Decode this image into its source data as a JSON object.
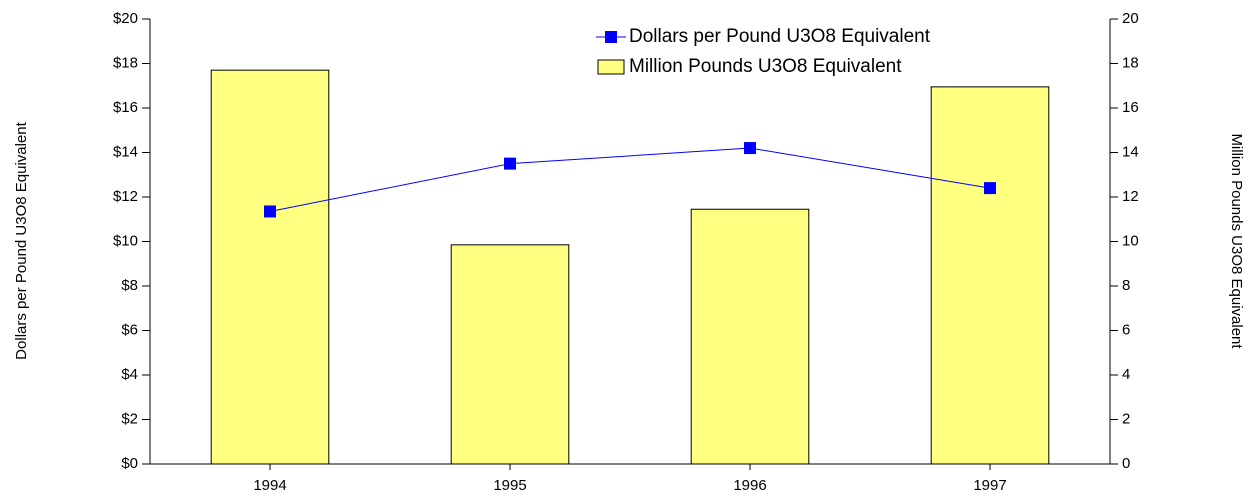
{
  "chart_data": {
    "type": "combo",
    "categories": [
      "1994",
      "1995",
      "1996",
      "1997"
    ],
    "ylabel": "Dollars per Pound U3O8 Equivalent",
    "y2label": "Million Pounds U3O8 Equivalent",
    "ylim": [
      0,
      20
    ],
    "yticks": [
      {
        "value": 0,
        "label": "$0"
      },
      {
        "value": 2,
        "label": "$2"
      },
      {
        "value": 4,
        "label": "$4"
      },
      {
        "value": 6,
        "label": "$6"
      },
      {
        "value": 8,
        "label": "$8"
      },
      {
        "value": 10,
        "label": "$10"
      },
      {
        "value": 12,
        "label": "$12"
      },
      {
        "value": 14,
        "label": "$14"
      },
      {
        "value": 16,
        "label": "$16"
      },
      {
        "value": 18,
        "label": "$18"
      },
      {
        "value": 20,
        "label": "$20"
      }
    ],
    "y2lim": [
      0,
      20
    ],
    "y2ticks": [
      0,
      2,
      4,
      6,
      8,
      10,
      12,
      14,
      16,
      18,
      20
    ],
    "legend": "top-right",
    "series": [
      {
        "name": "Dollars per Pound U3O8 Equivalent",
        "type": "line",
        "color": "#0000ff",
        "values": [
          11.35,
          13.5,
          14.2,
          12.4
        ]
      },
      {
        "name": "Million Pounds U3O8 Equivalent",
        "type": "bar",
        "axis": "y2",
        "color": "#ffff80",
        "values": [
          17.7,
          9.85,
          11.45,
          16.95
        ]
      }
    ]
  }
}
